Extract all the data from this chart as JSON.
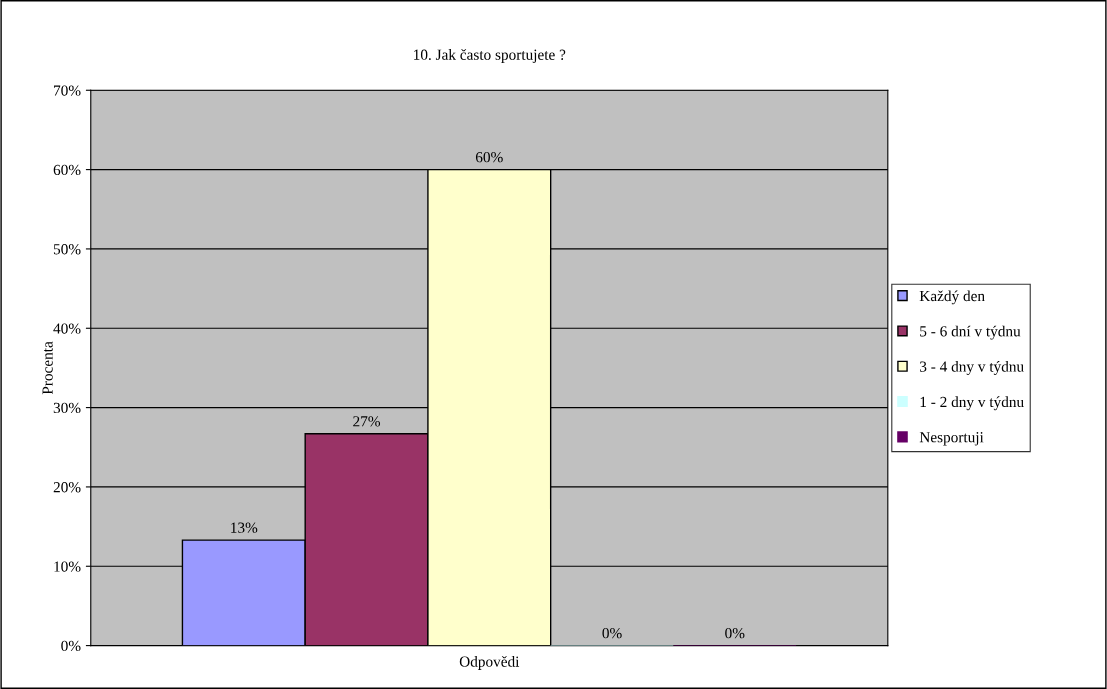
{
  "chart_data": {
    "type": "bar",
    "title": "10. Jak často sportujete ?",
    "xlabel": "Odpovědi",
    "ylabel": "Procenta",
    "categories": [
      null
    ],
    "series": [
      {
        "name": "Každý den",
        "color": "#9999ff",
        "values": [
          13.3
        ],
        "value_labels": [
          "13%"
        ]
      },
      {
        "name": "5 - 6 dní v týdnu",
        "color": "#993366",
        "values": [
          26.7
        ],
        "value_labels": [
          "27%"
        ]
      },
      {
        "name": "3 - 4 dny v týdnu",
        "color": "#ffffcc",
        "values": [
          60
        ],
        "value_labels": [
          "60%"
        ]
      },
      {
        "name": "1 - 2 dny v týdnu",
        "color": "#ccffff",
        "values": [
          0
        ],
        "value_labels": [
          "0%"
        ]
      },
      {
        "name": "Nesportuji",
        "color": "#660066",
        "values": [
          0
        ],
        "value_labels": [
          "0%"
        ]
      }
    ],
    "ylim": [
      0,
      70
    ],
    "yticks": [
      {
        "value": 0,
        "label": "0%"
      },
      {
        "value": 10,
        "label": "10%"
      },
      {
        "value": 20,
        "label": "20%"
      },
      {
        "value": 30,
        "label": "30%"
      },
      {
        "value": 40,
        "label": "40%"
      },
      {
        "value": 50,
        "label": "50%"
      },
      {
        "value": 60,
        "label": "60%"
      },
      {
        "value": 70,
        "label": "70%"
      }
    ],
    "grid": "y",
    "legend": "right"
  }
}
